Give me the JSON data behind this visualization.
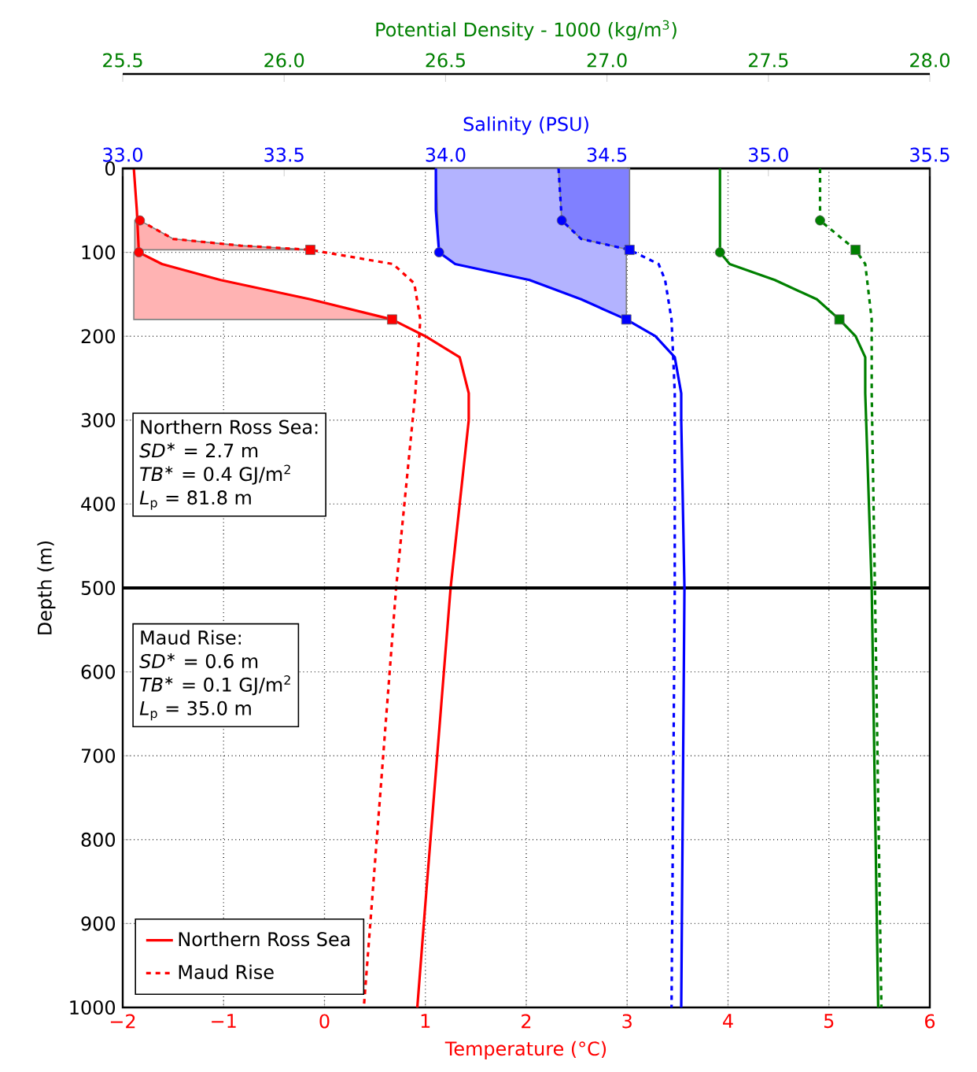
{
  "chart_data": [
    {
      "type": "line",
      "xlabel": "Temperature (°C)",
      "x2label": "Salinity (PSU)",
      "ylabel": "Depth (m)",
      "xlim": [
        -2,
        6
      ],
      "xticks": [
        {
          "value": -2,
          "label": "−2"
        },
        {
          "value": -1,
          "label": "−1"
        },
        0,
        1,
        2,
        3,
        4,
        5,
        6
      ],
      "x2lim": [
        33,
        35.5
      ],
      "x2ticks": [
        {
          "value": 33,
          "label": "33.0"
        },
        33.5,
        {
          "value": 34,
          "label": "34.0"
        },
        34.5,
        {
          "value": 35,
          "label": "35.0"
        },
        35.5
      ],
      "ylim": [
        1000,
        0
      ],
      "yticks": [
        0,
        100,
        200,
        300,
        400,
        500,
        600,
        700,
        800,
        900,
        1000
      ],
      "grid": true,
      "legend": "bottom left",
      "ref_lines": [
        {
          "axis": "y",
          "value": 500,
          "color": "#000000"
        }
      ],
      "annotations": [
        "Northern Ross Sea:",
        "*SD*$^{∗}$ = 2.7 m",
        "*TB*$^{∗}$ = 0.4 GJ/m$^{2}$",
        "*L*$_{p}$ = 81.8 m",
        "Maud Rise:",
        "*SD*$^{∗}$ = 0.6 m",
        "*TB*$^{∗}$ = 0.1 GJ/m$^{2}$",
        "*L*$_{p}$ = 35.0 m"
      ],
      "series": [
        {
          "type": "area",
          "color": "#ffb3b3",
          "x": [
            -1.89,
            -1.84,
            -1.61,
            -1.03,
            -0.14,
            0.67,
            -1.89
          ],
          "values": [
            100,
            100,
            114,
            133,
            156,
            180,
            180
          ]
        },
        {
          "type": "area",
          "color": "#ffb0b0",
          "x": [
            -1.83,
            -1.5,
            -0.83,
            -0.14,
            -1.88,
            -1.88
          ],
          "values": [
            62,
            84,
            92,
            97,
            97,
            62
          ]
        },
        {
          "type": "area",
          "axis": "x2",
          "color": "#b3b3ff",
          "x": [
            33.97,
            33.98,
            34.03,
            34.26,
            34.42,
            34.56,
            34.56
          ],
          "values": [
            0,
            100,
            114,
            133,
            156,
            180,
            0
          ]
        },
        {
          "type": "area",
          "axis": "x2",
          "color": "#8080ff",
          "x": [
            34.35,
            34.36,
            34.42,
            34.57,
            34.57
          ],
          "values": [
            0,
            62,
            84,
            97,
            0
          ]
        },
        {
          "name": "Northern Ross Sea",
          "color": "#ff0000",
          "line_style": "solid",
          "x": [
            -1.89,
            -1.86,
            -1.84,
            -1.61,
            -1.03,
            -0.14,
            0.67,
            1.0,
            1.34,
            1.43,
            1.43,
            1.25,
            1.01,
            0.92
          ],
          "values": [
            0,
            50,
            100,
            114,
            133,
            156,
            180,
            200,
            225,
            268,
            300,
            500,
            861,
            1000
          ]
        },
        {
          "name": "Maud Rise",
          "color": "#ff0000",
          "line_style": "dashed",
          "x": [
            -1.83,
            -1.5,
            -0.83,
            -0.14,
            0.68,
            0.89,
            0.95,
            0.9,
            0.71,
            0.39
          ],
          "values": [
            62,
            84,
            92,
            97,
            114,
            137,
            180,
            268,
            500,
            1000
          ]
        },
        {
          "axis": "x2",
          "color": "#0000ff",
          "line_style": "solid",
          "x": [
            33.97,
            33.97,
            33.98,
            34.03,
            34.26,
            34.42,
            34.56,
            34.65,
            34.71,
            34.73,
            34.73,
            34.74,
            34.73
          ],
          "values": [
            0,
            50,
            100,
            114,
            133,
            156,
            180,
            200,
            225,
            268,
            300,
            500,
            1000
          ]
        },
        {
          "axis": "x2",
          "color": "#0000ff",
          "line_style": "dashed",
          "x": [
            34.35,
            34.36,
            34.42,
            34.57,
            34.66,
            34.68,
            34.7,
            34.71,
            34.71,
            34.7
          ],
          "values": [
            0,
            62,
            84,
            97,
            114,
            133,
            180,
            268,
            500,
            1000
          ]
        },
        {
          "type": "scatter",
          "marker": "circle",
          "color": "#ff0000",
          "x": [
            -1.83,
            -1.84
          ],
          "values": [
            62,
            100
          ]
        },
        {
          "type": "scatter",
          "marker": "square",
          "color": "#ff0000",
          "x": [
            -0.14,
            0.67
          ],
          "values": [
            97,
            180
          ]
        },
        {
          "type": "scatter",
          "marker": "circle",
          "axis": "x2",
          "color": "#0000ff",
          "x": [
            34.36,
            33.98
          ],
          "values": [
            62,
            100
          ]
        },
        {
          "type": "scatter",
          "marker": "square",
          "axis": "x2",
          "color": "#0000ff",
          "x": [
            34.57,
            34.56
          ],
          "values": [
            97,
            180
          ]
        }
      ]
    },
    {
      "type": "line",
      "xlabel": "Potential Density - 1000 (kg/m$^{3}$)",
      "xlim": [
        25.5,
        28
      ],
      "xticks": [
        {
          "value": 25.5,
          "label": "25.5"
        },
        {
          "value": 26,
          "label": "26.0"
        },
        {
          "value": 26.5,
          "label": "26.5"
        },
        {
          "value": 27,
          "label": "27.0"
        },
        {
          "value": 27.5,
          "label": "27.5"
        },
        {
          "value": 28,
          "label": "28.0"
        }
      ],
      "ylim": [
        1000,
        0
      ],
      "tick_labels": "x",
      "series": [
        {
          "color": "#008000",
          "line_style": "solid",
          "x": [
            27.35,
            27.35,
            27.38,
            27.52,
            27.65,
            27.72,
            27.77,
            27.8,
            27.8,
            27.82,
            27.84
          ],
          "values": [
            0,
            100,
            114,
            133,
            156,
            180,
            200,
            225,
            268,
            500,
            1000
          ]
        },
        {
          "color": "#008000",
          "line_style": "dashed",
          "x": [
            27.66,
            27.66,
            27.77,
            27.8,
            27.82,
            27.82,
            27.83,
            27.85
          ],
          "values": [
            0,
            62,
            97,
            114,
            180,
            268,
            500,
            1000
          ]
        },
        {
          "type": "scatter",
          "marker": "circle",
          "color": "#008000",
          "x": [
            27.66,
            27.35
          ],
          "values": [
            62,
            100
          ]
        },
        {
          "type": "scatter",
          "marker": "square",
          "color": "#008000",
          "x": [
            27.77,
            27.72
          ],
          "values": [
            97,
            180
          ]
        }
      ]
    }
  ]
}
